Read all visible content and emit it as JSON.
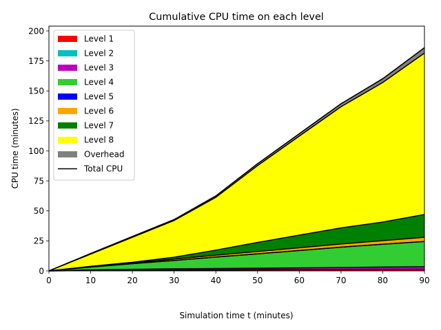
{
  "chart_data": {
    "type": "area",
    "title": "Cumulative CPU time on each level",
    "xlabel": "Simulation time t (minutes)",
    "ylabel": "CPU time (minutes)",
    "xlim": [
      0,
      90
    ],
    "ylim": [
      0,
      204
    ],
    "xticks": [
      0,
      10,
      20,
      30,
      40,
      50,
      60,
      70,
      80,
      90
    ],
    "yticks": [
      0,
      25,
      50,
      75,
      100,
      125,
      150,
      175,
      200
    ],
    "x": [
      0,
      10,
      20,
      30,
      40,
      50,
      60,
      70,
      80,
      90
    ],
    "legend_position": "upper-left",
    "series": [
      {
        "name": "Level 1",
        "color": "#ff0000",
        "values": [
          0,
          0.3,
          0.5,
          0.7,
          0.8,
          0.9,
          1.0,
          1.1,
          1.2,
          1.3
        ]
      },
      {
        "name": "Level 2",
        "color": "#00bfbf",
        "values": [
          0,
          0.0,
          0.0,
          0.0,
          0.0,
          0.0,
          0.0,
          0.0,
          0.0,
          0.0
        ]
      },
      {
        "name": "Level 3",
        "color": "#bf00bf",
        "values": [
          0,
          0.5,
          0.8,
          1.0,
          1.2,
          1.3,
          1.5,
          1.7,
          2.0,
          2.2
        ]
      },
      {
        "name": "Level 4",
        "color": "#32cd32",
        "values": [
          0,
          2.4,
          4.7,
          7.0,
          9.5,
          12.0,
          14.5,
          17.0,
          19.0,
          21.0
        ]
      },
      {
        "name": "Level 5",
        "color": "#0000ff",
        "values": [
          0,
          0.0,
          0.0,
          0.0,
          0.0,
          0.0,
          0.0,
          0.0,
          0.0,
          0.0
        ]
      },
      {
        "name": "Level 6",
        "color": "#ffa500",
        "values": [
          0,
          0.2,
          0.5,
          1.2,
          1.6,
          2.0,
          2.3,
          2.6,
          3.0,
          3.5
        ]
      },
      {
        "name": "Level 7",
        "color": "#008000",
        "values": [
          0,
          0.4,
          0.7,
          1.5,
          4.2,
          7.5,
          10.5,
          13.4,
          15.5,
          19.0
        ]
      },
      {
        "name": "Level 8",
        "color": "#ffff00",
        "values": [
          0,
          10.2,
          20.8,
          30.6,
          44.0,
          64.0,
          82.5,
          101.0,
          116.3,
          134.5
        ]
      },
      {
        "name": "Overhead",
        "color": "#808080",
        "values": [
          0,
          0.5,
          0.7,
          0.8,
          1.2,
          1.6,
          2.0,
          2.5,
          3.2,
          4.5
        ]
      }
    ],
    "total_cpu": {
      "name": "Total CPU",
      "color": "#000000",
      "values": [
        0,
        14.5,
        28.7,
        42.8,
        62.5,
        89.3,
        114.3,
        139.3,
        160.2,
        186.0
      ]
    }
  }
}
